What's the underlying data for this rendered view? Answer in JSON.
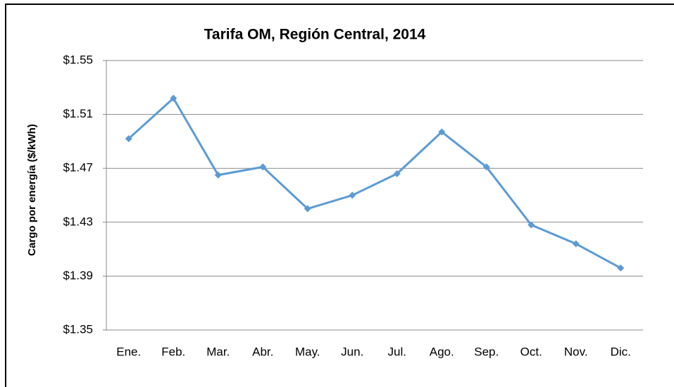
{
  "chart_data": {
    "type": "line",
    "title": "Tarifa OM, Región Central, 2014",
    "y_label": "Cargo por energía ($/kWh)",
    "categories": [
      "Ene.",
      "Feb.",
      "Mar.",
      "Abr.",
      "May.",
      "Jun.",
      "Jul.",
      "Ago.",
      "Sep.",
      "Oct.",
      "Nov.",
      "Dic."
    ],
    "series": [
      {
        "name": "Tarifa OM",
        "color": "#5b9bd5",
        "values": [
          1.492,
          1.522,
          1.465,
          1.471,
          1.44,
          1.45,
          1.466,
          1.497,
          1.471,
          1.428,
          1.414,
          1.396
        ]
      }
    ],
    "ylim": [
      1.35,
      1.55
    ],
    "yticks": [
      {
        "value": 1.35,
        "label": "$1.35"
      },
      {
        "value": 1.39,
        "label": "$1.39"
      },
      {
        "value": 1.43,
        "label": "$1.43"
      },
      {
        "value": 1.47,
        "label": "$1.47"
      },
      {
        "value": 1.51,
        "label": "$1.51"
      },
      {
        "value": 1.55,
        "label": "$1.55"
      }
    ],
    "grid": true
  }
}
